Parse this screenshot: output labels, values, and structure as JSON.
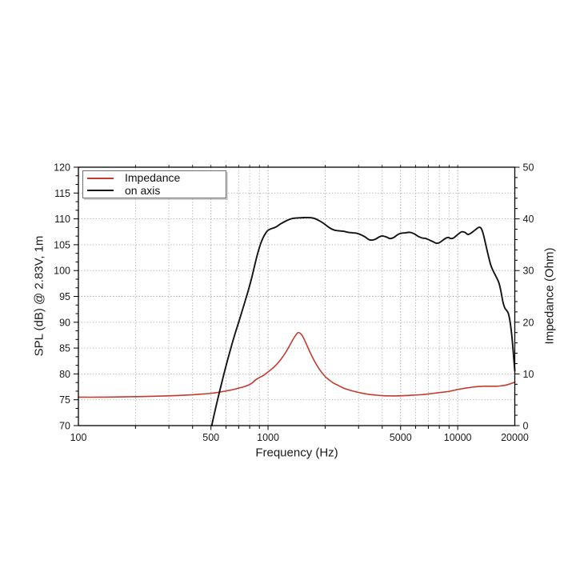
{
  "chart_data": {
    "type": "line",
    "title": "",
    "xlabel": "Frequency (Hz)",
    "ylabel_left": "SPL (dB) @ 2.83V, 1m",
    "ylabel_right": "Impedance (Ohm)",
    "x_axis": {
      "scale": "log",
      "min": 100,
      "max": 20000,
      "tick_labels": [
        {
          "value": 100,
          "label": "100"
        },
        {
          "value": 500,
          "label": "500"
        },
        {
          "value": 1000,
          "label": "1000"
        },
        {
          "value": 5000,
          "label": "5000"
        },
        {
          "value": 10000,
          "label": "10000"
        },
        {
          "value": 20000,
          "label": "20000"
        }
      ],
      "grid_values": [
        200,
        300,
        400,
        500,
        600,
        700,
        800,
        900,
        1000,
        2000,
        3000,
        4000,
        5000,
        6000,
        7000,
        8000,
        9000,
        10000
      ],
      "labeled_grid_values": [
        500,
        1000,
        5000,
        10000
      ]
    },
    "y_left": {
      "min": 70,
      "max": 120,
      "major_step": 5,
      "minors_per_major": 3,
      "tick_labels": [
        70,
        75,
        80,
        85,
        90,
        95,
        100,
        105,
        110,
        115,
        120
      ],
      "grid_values": [
        75,
        80,
        85,
        90,
        95,
        100,
        105,
        110,
        115
      ]
    },
    "y_right": {
      "min": 0,
      "max": 50,
      "major_step": 10,
      "minor_step": 2,
      "tick_labels": [
        0,
        10,
        20,
        30,
        40,
        50
      ]
    },
    "legend": {
      "position": "top-left",
      "entries": [
        {
          "label": "Impedance",
          "color": "#c63a2e"
        },
        {
          "label": "on axis",
          "color": "#141414"
        }
      ]
    },
    "series": [
      {
        "name": "Impedance",
        "axis": "right",
        "color": "#c63a2e",
        "width": 1.6,
        "points": [
          [
            100,
            5.5
          ],
          [
            130,
            5.5
          ],
          [
            160,
            5.55
          ],
          [
            200,
            5.6
          ],
          [
            250,
            5.68
          ],
          [
            300,
            5.75
          ],
          [
            350,
            5.85
          ],
          [
            400,
            5.97
          ],
          [
            450,
            6.1
          ],
          [
            500,
            6.25
          ],
          [
            550,
            6.45
          ],
          [
            600,
            6.7
          ],
          [
            650,
            6.95
          ],
          [
            700,
            7.25
          ],
          [
            750,
            7.55
          ],
          [
            800,
            7.95
          ],
          [
            830,
            8.35
          ],
          [
            860,
            8.85
          ],
          [
            900,
            9.3
          ],
          [
            950,
            9.75
          ],
          [
            1000,
            10.4
          ],
          [
            1050,
            11.0
          ],
          [
            1100,
            11.7
          ],
          [
            1150,
            12.5
          ],
          [
            1200,
            13.4
          ],
          [
            1250,
            14.4
          ],
          [
            1300,
            15.5
          ],
          [
            1350,
            16.6
          ],
          [
            1400,
            17.5
          ],
          [
            1440,
            18.0
          ],
          [
            1480,
            17.85
          ],
          [
            1520,
            17.3
          ],
          [
            1560,
            16.5
          ],
          [
            1600,
            15.6
          ],
          [
            1650,
            14.5
          ],
          [
            1700,
            13.5
          ],
          [
            1750,
            12.6
          ],
          [
            1800,
            11.8
          ],
          [
            1850,
            11.1
          ],
          [
            1900,
            10.5
          ],
          [
            2000,
            9.5
          ],
          [
            2100,
            8.85
          ],
          [
            2200,
            8.3
          ],
          [
            2350,
            7.75
          ],
          [
            2500,
            7.25
          ],
          [
            2700,
            6.85
          ],
          [
            2900,
            6.55
          ],
          [
            3100,
            6.3
          ],
          [
            3400,
            6.05
          ],
          [
            3700,
            5.9
          ],
          [
            4000,
            5.8
          ],
          [
            4400,
            5.75
          ],
          [
            4800,
            5.75
          ],
          [
            5200,
            5.8
          ],
          [
            5600,
            5.85
          ],
          [
            6000,
            5.92
          ],
          [
            6500,
            6.0
          ],
          [
            7000,
            6.12
          ],
          [
            7500,
            6.25
          ],
          [
            8000,
            6.4
          ],
          [
            8500,
            6.5
          ],
          [
            9000,
            6.62
          ],
          [
            9500,
            6.8
          ],
          [
            10000,
            7.0
          ],
          [
            10500,
            7.12
          ],
          [
            11000,
            7.25
          ],
          [
            11500,
            7.35
          ],
          [
            12000,
            7.45
          ],
          [
            12500,
            7.52
          ],
          [
            13000,
            7.57
          ],
          [
            13500,
            7.6
          ],
          [
            14000,
            7.62
          ],
          [
            15000,
            7.62
          ],
          [
            16000,
            7.62
          ],
          [
            17000,
            7.7
          ],
          [
            18000,
            7.85
          ],
          [
            19000,
            8.1
          ],
          [
            20000,
            8.4
          ]
        ]
      },
      {
        "name": "on axis",
        "axis": "left",
        "color": "#141414",
        "width": 1.9,
        "points": [
          [
            505,
            70
          ],
          [
            515,
            71.5
          ],
          [
            530,
            73.5
          ],
          [
            550,
            76
          ],
          [
            570,
            78.3
          ],
          [
            590,
            80.5
          ],
          [
            615,
            83
          ],
          [
            640,
            85.3
          ],
          [
            670,
            87.8
          ],
          [
            700,
            90
          ],
          [
            730,
            92.2
          ],
          [
            760,
            94.3
          ],
          [
            790,
            96.4
          ],
          [
            820,
            98.6
          ],
          [
            850,
            101
          ],
          [
            880,
            103.2
          ],
          [
            910,
            105
          ],
          [
            940,
            106.3
          ],
          [
            970,
            107.2
          ],
          [
            1000,
            107.8
          ],
          [
            1040,
            108.1
          ],
          [
            1080,
            108.3
          ],
          [
            1120,
            108.6
          ],
          [
            1160,
            109
          ],
          [
            1200,
            109.3
          ],
          [
            1260,
            109.7
          ],
          [
            1320,
            110
          ],
          [
            1380,
            110.15
          ],
          [
            1450,
            110.2
          ],
          [
            1550,
            110.25
          ],
          [
            1650,
            110.25
          ],
          [
            1750,
            110.1
          ],
          [
            1850,
            109.7
          ],
          [
            1950,
            109.2
          ],
          [
            2050,
            108.6
          ],
          [
            2150,
            108.1
          ],
          [
            2250,
            107.8
          ],
          [
            2350,
            107.7
          ],
          [
            2500,
            107.6
          ],
          [
            2650,
            107.4
          ],
          [
            2800,
            107.3
          ],
          [
            2950,
            107.2
          ],
          [
            3100,
            106.9
          ],
          [
            3250,
            106.5
          ],
          [
            3400,
            106.0
          ],
          [
            3550,
            105.9
          ],
          [
            3700,
            106.1
          ],
          [
            3850,
            106.5
          ],
          [
            4000,
            106.7
          ],
          [
            4200,
            106.5
          ],
          [
            4400,
            106.2
          ],
          [
            4600,
            106.4
          ],
          [
            4800,
            106.9
          ],
          [
            5000,
            107.2
          ],
          [
            5300,
            107.3
          ],
          [
            5600,
            107.4
          ],
          [
            5900,
            107.1
          ],
          [
            6200,
            106.6
          ],
          [
            6500,
            106.3
          ],
          [
            6800,
            106.2
          ],
          [
            7100,
            105.9
          ],
          [
            7400,
            105.6
          ],
          [
            7700,
            105.3
          ],
          [
            8000,
            105.4
          ],
          [
            8300,
            105.8
          ],
          [
            8600,
            106.2
          ],
          [
            8900,
            106.4
          ],
          [
            9200,
            106.2
          ],
          [
            9500,
            106.3
          ],
          [
            9800,
            106.7
          ],
          [
            10100,
            107.1
          ],
          [
            10500,
            107.5
          ],
          [
            10900,
            107.4
          ],
          [
            11300,
            107.0
          ],
          [
            11700,
            107.2
          ],
          [
            12100,
            107.6
          ],
          [
            12500,
            108.0
          ],
          [
            12900,
            108.35
          ],
          [
            13200,
            108.3
          ],
          [
            13500,
            107.6
          ],
          [
            13800,
            106.3
          ],
          [
            14100,
            104.8
          ],
          [
            14500,
            102.9
          ],
          [
            14900,
            101.2
          ],
          [
            15300,
            100.1
          ],
          [
            15700,
            99.3
          ],
          [
            16100,
            98.5
          ],
          [
            16500,
            97.6
          ],
          [
            16900,
            96
          ],
          [
            17300,
            94
          ],
          [
            17700,
            92.8
          ],
          [
            18100,
            92.3
          ],
          [
            18500,
            91.7
          ],
          [
            18900,
            90
          ],
          [
            19300,
            87.3
          ],
          [
            19600,
            84.5
          ],
          [
            20000,
            80.6
          ]
        ]
      }
    ],
    "colors": {
      "background": "#ffffff",
      "axis": "#000000",
      "grid_minor": "#a6a6a6",
      "grid_major": "#8c8c8c",
      "text": "#1a1a1a"
    },
    "grid": true
  }
}
